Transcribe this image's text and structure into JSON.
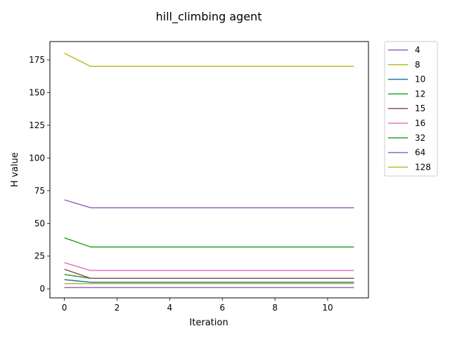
{
  "chart_data": {
    "type": "line",
    "title": "hill_climbing agent",
    "xlabel": "Iteration",
    "ylabel": "H value",
    "xlim": [
      -0.55,
      11.55
    ],
    "ylim": [
      -6.9,
      189.0
    ],
    "xticks": [
      0,
      2,
      4,
      6,
      8,
      10
    ],
    "yticks": [
      0,
      25,
      50,
      75,
      100,
      125,
      150,
      175
    ],
    "grid": false,
    "legend_position": "outside-right-top",
    "x": [
      0,
      1,
      2,
      3,
      4,
      5,
      6,
      7,
      8,
      9,
      10,
      11
    ],
    "series": [
      {
        "name": "4",
        "color": "#9467bd",
        "values": [
          1,
          1,
          1,
          1,
          1,
          1,
          1,
          1,
          1,
          1,
          1,
          1
        ]
      },
      {
        "name": "8",
        "color": "#bcbd22",
        "values": [
          4,
          4,
          4,
          4,
          4,
          4,
          4,
          4,
          4,
          4,
          4,
          4
        ]
      },
      {
        "name": "10",
        "color": "#1f77b4",
        "values": [
          7,
          5,
          5,
          5,
          5,
          5,
          5,
          5,
          5,
          5,
          5,
          5
        ]
      },
      {
        "name": "12",
        "color": "#2ca02c",
        "values": [
          11,
          8,
          8,
          8,
          8,
          8,
          8,
          8,
          8,
          8,
          8,
          8
        ]
      },
      {
        "name": "15",
        "color": "#8c564b",
        "values": [
          15,
          8,
          8,
          8,
          8,
          8,
          8,
          8,
          8,
          8,
          8,
          8
        ]
      },
      {
        "name": "16",
        "color": "#e377c2",
        "values": [
          20,
          14,
          14,
          14,
          14,
          14,
          14,
          14,
          14,
          14,
          14,
          14
        ]
      },
      {
        "name": "32",
        "color": "#2ca02c",
        "values": [
          39,
          32,
          32,
          32,
          32,
          32,
          32,
          32,
          32,
          32,
          32,
          32
        ]
      },
      {
        "name": "64",
        "color": "#9467bd",
        "values": [
          68,
          62,
          62,
          62,
          62,
          62,
          62,
          62,
          62,
          62,
          62,
          62
        ]
      },
      {
        "name": "128",
        "color": "#bcbd22",
        "values": [
          180,
          170,
          170,
          170,
          170,
          170,
          170,
          170,
          170,
          170,
          170,
          170
        ]
      }
    ]
  }
}
